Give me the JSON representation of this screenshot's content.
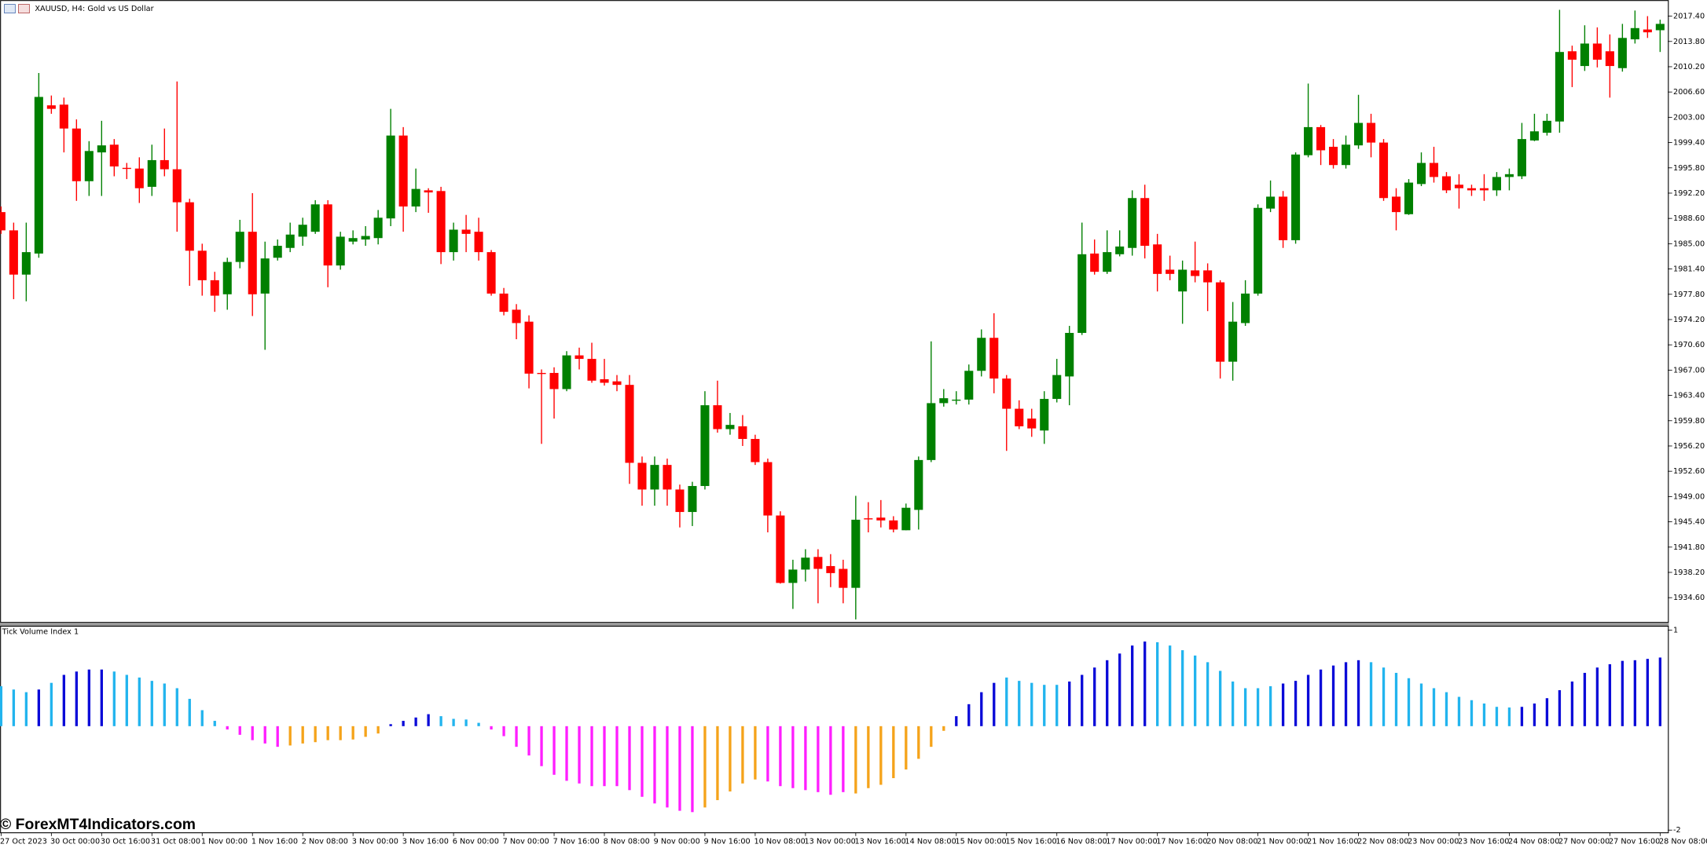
{
  "window_title": "XAUUSD, H4: Gold vs US Dollar",
  "watermark": "© ForexMT4Indicators.com",
  "chart_data": [
    {
      "type": "candlestick",
      "categories": [
        "27 Oct 2023",
        null,
        null,
        null,
        "30 Oct 00:00",
        null,
        null,
        null,
        "30 Oct 16:00",
        null,
        null,
        null,
        "31 Oct 08:00",
        null,
        null,
        null,
        "1 Nov 00:00",
        null,
        null,
        null,
        "1 Nov 16:00",
        null,
        null,
        null,
        "2 Nov 08:00",
        null,
        null,
        null,
        "3 Nov 00:00",
        null,
        null,
        null,
        "3 Nov 16:00",
        null,
        null,
        null,
        "6 Nov 00:00",
        null,
        null,
        null,
        "7 Nov 00:00",
        null,
        null,
        null,
        "7 Nov 16:00",
        null,
        null,
        null,
        "8 Nov 08:00",
        null,
        null,
        null,
        "9 Nov 00:00",
        null,
        null,
        null,
        "9 Nov 16:00",
        null,
        null,
        null,
        "10 Nov 08:00",
        null,
        null,
        null,
        "13 Nov 00:00",
        null,
        null,
        null,
        "13 Nov 16:00",
        null,
        null,
        null,
        "14 Nov 08:00",
        null,
        null,
        null,
        "15 Nov 00:00",
        null,
        null,
        null,
        "15 Nov 16:00",
        null,
        null,
        null,
        "16 Nov 08:00",
        null,
        null,
        null,
        "17 Nov 00:00",
        null,
        null,
        null,
        "17 Nov 16:00",
        null,
        null,
        null,
        "20 Nov 08:00",
        null,
        null,
        null,
        "21 Nov 00:00",
        null,
        null,
        null,
        "21 Nov 16:00",
        null,
        null,
        null,
        "22 Nov 08:00",
        null,
        null,
        null,
        "23 Nov 00:00",
        null,
        null,
        null,
        "23 Nov 16:00",
        null,
        null,
        null,
        "24 Nov 08:00",
        null,
        null,
        null,
        "27 Nov 00:00",
        null,
        null,
        null,
        "27 Nov 16:00",
        null,
        null,
        null,
        "28 Nov 08:00"
      ],
      "open": [
        1989.5,
        1986.9,
        1980.6,
        1983.6,
        2004.7,
        2004.8,
        2001.4,
        1993.9,
        1998.0,
        1999.1,
        1995.8,
        1995.7,
        1993.1,
        1996.9,
        1995.6,
        1990.9,
        1984.0,
        1979.8,
        1977.8,
        1982.4,
        1986.7,
        1977.9,
        1983.0,
        1984.4,
        1986.0,
        1986.7,
        1990.6,
        1981.9,
        1985.3,
        1985.6,
        1985.8,
        1988.6,
        2000.4,
        1990.3,
        1992.6,
        1992.5,
        1983.8,
        1987.0,
        1986.7,
        1983.8,
        1977.9,
        1975.6,
        1973.9,
        1966.6,
        1966.6,
        1964.3,
        1969.1,
        1968.6,
        1965.7,
        1965.4,
        1964.9,
        1953.8,
        1950.0,
        1953.5,
        1950.0,
        1946.8,
        1950.5,
        1962.0,
        1958.6,
        1959.0,
        1957.2,
        1953.9,
        1946.3,
        1936.7,
        1938.6,
        1940.4,
        1939.1,
        1938.7,
        1936.0,
        1945.9,
        1946.0,
        1945.6,
        1944.2,
        1947.1,
        1954.2,
        1962.3,
        1962.7,
        1962.8,
        1966.9,
        1971.6,
        1965.8,
        1961.5,
        1960.1,
        1958.4,
        1962.9,
        1966.1,
        1972.3,
        1983.6,
        1981.0,
        1983.5,
        1984.4,
        1991.5,
        1984.9,
        1981.3,
        1978.2,
        1981.2,
        1981.2,
        1979.5,
        1968.2,
        1973.7,
        1977.9,
        1990.0,
        1991.7,
        1985.5,
        1997.6,
        2001.6,
        1998.8,
        1996.2,
        1999.0,
        2002.2,
        1999.4,
        1991.7,
        1989.2,
        1993.5,
        1996.5,
        1994.6,
        1993.4,
        1992.9,
        1992.9,
        1992.6,
        1994.5,
        1994.6,
        1999.7,
        2000.8,
        2002.4,
        2012.4,
        2010.3,
        2013.5,
        2012.4,
        2010.0,
        2014.1,
        2015.5,
        2015.4
      ],
      "high": [
        1990.3,
        1988.0,
        1988.0,
        2009.3,
        2006.1,
        2005.8,
        2002.7,
        1999.6,
        2002.5,
        1999.9,
        1996.5,
        1997.3,
        1999.1,
        2001.4,
        2008.1,
        1991.4,
        1985.0,
        1981.0,
        1983.0,
        1988.4,
        1992.2,
        1985.3,
        1985.6,
        1988.0,
        1988.7,
        1991.2,
        1991.2,
        1986.7,
        1986.9,
        1987.5,
        1989.8,
        2004.2,
        2001.6,
        1995.7,
        1992.9,
        1993.1,
        1988.0,
        1989.1,
        1988.7,
        1984.1,
        1978.7,
        1976.4,
        1974.8,
        1967.1,
        1967.4,
        1969.7,
        1970.2,
        1970.9,
        1968.6,
        1966.3,
        1966.3,
        1954.7,
        1954.7,
        1954.4,
        1950.7,
        1951.1,
        1964.0,
        1965.5,
        1960.9,
        1960.6,
        1957.8,
        1954.4,
        1946.9,
        1940.0,
        1941.5,
        1941.5,
        1940.8,
        1940.0,
        1949.1,
        1948.2,
        1948.5,
        1946.2,
        1948.0,
        1954.7,
        1971.1,
        1964.3,
        1964.0,
        1967.8,
        1972.8,
        1975.1,
        1966.3,
        1962.7,
        1961.5,
        1964.0,
        1968.6,
        1973.3,
        1988.0,
        1985.6,
        1986.9,
        1986.9,
        1992.6,
        1993.4,
        1986.4,
        1983.3,
        1982.6,
        1985.3,
        1982.2,
        1979.8,
        1976.7,
        1979.8,
        1990.6,
        1994.0,
        1992.5,
        1998.0,
        2007.8,
        2001.9,
        1999.9,
        2000.4,
        2006.2,
        2003.5,
        1999.9,
        1992.9,
        1994.2,
        1998.0,
        1998.8,
        1995.2,
        1994.9,
        1993.4,
        1994.9,
        1995.2,
        1995.7,
        2002.2,
        2003.5,
        2003.5,
        2018.3,
        2013.2,
        2016.1,
        2015.8,
        2014.8,
        2016.3,
        2018.2,
        2017.4,
        2016.9
      ],
      "low": [
        1986.4,
        1977.1,
        1976.8,
        1983.0,
        2003.5,
        1998.0,
        1991.1,
        1991.8,
        1991.8,
        1994.6,
        1994.2,
        1990.8,
        1991.8,
        1994.6,
        1986.7,
        1979.0,
        1977.6,
        1975.3,
        1975.6,
        1981.5,
        1974.7,
        1969.9,
        1982.6,
        1983.8,
        1984.7,
        1986.4,
        1978.8,
        1981.3,
        1984.9,
        1984.7,
        1984.9,
        1987.5,
        1986.7,
        1989.5,
        1989.4,
        1982.1,
        1982.6,
        1983.8,
        1982.6,
        1977.6,
        1974.8,
        1971.4,
        1964.4,
        1956.5,
        1960.1,
        1964.0,
        1967.1,
        1965.2,
        1964.8,
        1964.0,
        1950.8,
        1947.7,
        1947.7,
        1947.7,
        1944.6,
        1944.8,
        1950.0,
        1958.1,
        1957.8,
        1956.2,
        1953.5,
        1943.9,
        1936.6,
        1933.0,
        1936.9,
        1933.8,
        1936.1,
        1933.8,
        1931.5,
        1943.9,
        1944.6,
        1943.9,
        1944.2,
        1944.3,
        1953.9,
        1961.8,
        1962.1,
        1962.1,
        1966.1,
        1963.7,
        1955.5,
        1958.6,
        1957.5,
        1956.5,
        1962.4,
        1962.0,
        1972.0,
        1980.6,
        1980.7,
        1983.2,
        1983.3,
        1982.9,
        1978.2,
        1979.8,
        1973.6,
        1979.5,
        1975.4,
        1965.8,
        1965.5,
        1973.3,
        1977.6,
        1989.5,
        1984.4,
        1985.0,
        1997.3,
        1996.2,
        1995.7,
        1995.7,
        1998.5,
        1997.3,
        1991.1,
        1986.9,
        1989.1,
        1993.2,
        1993.7,
        1992.2,
        1990.0,
        1991.8,
        1991.1,
        1991.8,
        1992.6,
        1994.2,
        1999.6,
        2000.4,
        2000.8,
        2007.3,
        2009.6,
        2010.1,
        2005.8,
        2009.5,
        2013.5,
        2014.3,
        2012.3
      ],
      "close": [
        1986.9,
        1980.6,
        1983.8,
        2005.9,
        2004.2,
        2001.4,
        1993.9,
        1998.2,
        1999.0,
        1996.0,
        1995.7,
        1992.9,
        1996.9,
        1995.6,
        1990.9,
        1984.0,
        1979.8,
        1977.6,
        1982.4,
        1986.7,
        1977.8,
        1982.9,
        1984.7,
        1986.3,
        1987.7,
        1990.6,
        1981.9,
        1986.0,
        1985.8,
        1986.1,
        1988.7,
        2000.4,
        1990.3,
        1992.8,
        1992.3,
        1983.8,
        1987.0,
        1986.4,
        1983.8,
        1977.9,
        1975.3,
        1973.7,
        1966.5,
        1966.5,
        1964.3,
        1969.1,
        1968.6,
        1965.5,
        1965.2,
        1964.9,
        1953.8,
        1950.0,
        1953.5,
        1950.0,
        1946.8,
        1950.5,
        1962.0,
        1958.6,
        1959.2,
        1957.2,
        1953.9,
        1946.3,
        1936.7,
        1938.6,
        1940.3,
        1938.7,
        1938.1,
        1936.0,
        1945.7,
        1945.8,
        1945.6,
        1944.3,
        1947.4,
        1954.2,
        1962.3,
        1963.0,
        1962.8,
        1966.9,
        1971.6,
        1965.8,
        1961.5,
        1959.0,
        1958.7,
        1962.9,
        1966.3,
        1972.3,
        1983.5,
        1981.0,
        1983.8,
        1984.6,
        1991.5,
        1984.7,
        1980.7,
        1980.7,
        1981.3,
        1980.4,
        1979.5,
        1968.2,
        1973.9,
        1977.9,
        1990.1,
        1991.7,
        1985.5,
        1997.7,
        2001.6,
        1998.3,
        1996.2,
        1999.1,
        2002.2,
        1999.4,
        1991.5,
        1989.5,
        1993.7,
        1996.5,
        1994.5,
        1992.6,
        1992.9,
        1992.6,
        1992.6,
        1994.5,
        1994.9,
        1999.9,
        2001.0,
        2002.5,
        2012.3,
        2011.2,
        2013.5,
        2011.2,
        2010.3,
        2014.3,
        2015.7,
        2015.1,
        2016.3
      ],
      "up_color": "#008000",
      "down_color": "#ff0000",
      "ylim": [
        1931.0,
        2019.7
      ],
      "yticks": [
        {
          "value": 2017.4,
          "label": "2017.40"
        },
        {
          "value": 2013.8,
          "label": "2013.80"
        },
        {
          "value": 2010.2,
          "label": "2010.20"
        },
        {
          "value": 2006.6,
          "label": "2006.60"
        },
        {
          "value": 2003.0,
          "label": "2003.00"
        },
        {
          "value": 1999.4,
          "label": "1999.40"
        },
        {
          "value": 1995.8,
          "label": "1995.80"
        },
        {
          "value": 1992.2,
          "label": "1992.20"
        },
        {
          "value": 1988.6,
          "label": "1988.60"
        },
        {
          "value": 1985.0,
          "label": "1985.00"
        },
        {
          "value": 1981.4,
          "label": "1981.40"
        },
        {
          "value": 1977.8,
          "label": "1977.80"
        },
        {
          "value": 1974.2,
          "label": "1974.20"
        },
        {
          "value": 1970.6,
          "label": "1970.60"
        },
        {
          "value": 1967.0,
          "label": "1967.00"
        },
        {
          "value": 1963.4,
          "label": "1963.40"
        },
        {
          "value": 1959.8,
          "label": "1959.80"
        },
        {
          "value": 1956.2,
          "label": "1956.20"
        },
        {
          "value": 1952.6,
          "label": "1952.60"
        },
        {
          "value": 1949.0,
          "label": "1949.00"
        },
        {
          "value": 1945.4,
          "label": "1945.40"
        },
        {
          "value": 1941.8,
          "label": "1941.80"
        },
        {
          "value": 1938.2,
          "label": "1938.20"
        },
        {
          "value": 1934.6,
          "label": "1934.60"
        }
      ]
    },
    {
      "type": "bar",
      "title": "Tick Volume Index 1",
      "values": [
        0.16,
        0.11,
        0.07,
        0.11,
        0.21,
        0.33,
        0.38,
        0.41,
        0.41,
        0.38,
        0.33,
        0.29,
        0.24,
        0.2,
        0.13,
        -0.03,
        -0.2,
        -0.36,
        -0.49,
        -0.57,
        -0.65,
        -0.7,
        -0.75,
        -0.73,
        -0.7,
        -0.68,
        -0.65,
        -0.65,
        -0.64,
        -0.6,
        -0.55,
        -0.41,
        -0.36,
        -0.31,
        -0.26,
        -0.29,
        -0.33,
        -0.34,
        -0.39,
        -0.49,
        -0.59,
        -0.75,
        -0.88,
        -1.04,
        -1.17,
        -1.26,
        -1.3,
        -1.34,
        -1.34,
        -1.34,
        -1.4,
        -1.5,
        -1.6,
        -1.66,
        -1.71,
        -1.73,
        -1.66,
        -1.55,
        -1.42,
        -1.3,
        -1.24,
        -1.27,
        -1.34,
        -1.37,
        -1.4,
        -1.43,
        -1.47,
        -1.43,
        -1.45,
        -1.37,
        -1.32,
        -1.22,
        -1.09,
        -0.93,
        -0.75,
        -0.51,
        -0.29,
        -0.11,
        0.07,
        0.21,
        0.29,
        0.24,
        0.21,
        0.18,
        0.18,
        0.23,
        0.33,
        0.44,
        0.55,
        0.65,
        0.77,
        0.83,
        0.82,
        0.77,
        0.7,
        0.62,
        0.52,
        0.39,
        0.23,
        0.13,
        0.13,
        0.16,
        0.2,
        0.24,
        0.33,
        0.41,
        0.47,
        0.52,
        0.55,
        0.52,
        0.44,
        0.36,
        0.28,
        0.2,
        0.13,
        0.07,
        0.0,
        -0.05,
        -0.1,
        -0.15,
        -0.16,
        -0.15,
        -0.1,
        -0.02,
        0.1,
        0.23,
        0.36,
        0.44,
        0.49,
        0.54,
        0.55,
        0.57,
        0.59
      ],
      "colors": [
        "#22b4ee",
        "#22b4ee",
        "#22b4ee",
        "#0a0ad8",
        "#22b4ee",
        "#0a0ad8",
        "#0a0ad8",
        "#0a0ad8",
        "#0a0ad8",
        "#22b4ee",
        "#22b4ee",
        "#22b4ee",
        "#22b4ee",
        "#22b4ee",
        "#22b4ee",
        "#22b4ee",
        "#22b4ee",
        "#22b4ee",
        "#ff1eff",
        "#ff1eff",
        "#ff1eff",
        "#ff1eff",
        "#ff1eff",
        "#f5a31a",
        "#f5a31a",
        "#f5a31a",
        "#f5a31a",
        "#f5a31a",
        "#f5a31a",
        "#f5a31a",
        "#f5a31a",
        "#0a0ad8",
        "#0a0ad8",
        "#0a0ad8",
        "#0a0ad8",
        "#22b4ee",
        "#22b4ee",
        "#22b4ee",
        "#22b4ee",
        "#ff1eff",
        "#ff1eff",
        "#ff1eff",
        "#ff1eff",
        "#ff1eff",
        "#ff1eff",
        "#ff1eff",
        "#ff1eff",
        "#ff1eff",
        "#ff1eff",
        "#ff1eff",
        "#ff1eff",
        "#ff1eff",
        "#ff1eff",
        "#ff1eff",
        "#ff1eff",
        "#ff1eff",
        "#f5a31a",
        "#f5a31a",
        "#f5a31a",
        "#f5a31a",
        "#f5a31a",
        "#ff1eff",
        "#ff1eff",
        "#ff1eff",
        "#ff1eff",
        "#ff1eff",
        "#ff1eff",
        "#ff1eff",
        "#f5a31a",
        "#f5a31a",
        "#f5a31a",
        "#f5a31a",
        "#f5a31a",
        "#f5a31a",
        "#f5a31a",
        "#f5a31a",
        "#0a0ad8",
        "#0a0ad8",
        "#0a0ad8",
        "#0a0ad8",
        "#22b4ee",
        "#22b4ee",
        "#22b4ee",
        "#22b4ee",
        "#22b4ee",
        "#0a0ad8",
        "#0a0ad8",
        "#0a0ad8",
        "#0a0ad8",
        "#0a0ad8",
        "#0a0ad8",
        "#0a0ad8",
        "#22b4ee",
        "#22b4ee",
        "#22b4ee",
        "#22b4ee",
        "#22b4ee",
        "#22b4ee",
        "#22b4ee",
        "#22b4ee",
        "#22b4ee",
        "#22b4ee",
        "#0a0ad8",
        "#0a0ad8",
        "#0a0ad8",
        "#0a0ad8",
        "#0a0ad8",
        "#0a0ad8",
        "#0a0ad8",
        "#22b4ee",
        "#22b4ee",
        "#22b4ee",
        "#22b4ee",
        "#22b4ee",
        "#22b4ee",
        "#22b4ee",
        "#22b4ee",
        "#22b4ee",
        "#22b4ee",
        "#22b4ee",
        "#22b4ee",
        "#0a0ad8",
        "#0a0ad8",
        "#0a0ad8",
        "#0a0ad8",
        "#0a0ad8",
        "#0a0ad8",
        "#0a0ad8",
        "#0a0ad8",
        "#0a0ad8",
        "#0a0ad8",
        "#0a0ad8",
        "#0a0ad8"
      ],
      "baseline": -0.44,
      "ylim": [
        -2.04,
        1.06
      ],
      "yticks": [
        1,
        -2
      ]
    }
  ]
}
